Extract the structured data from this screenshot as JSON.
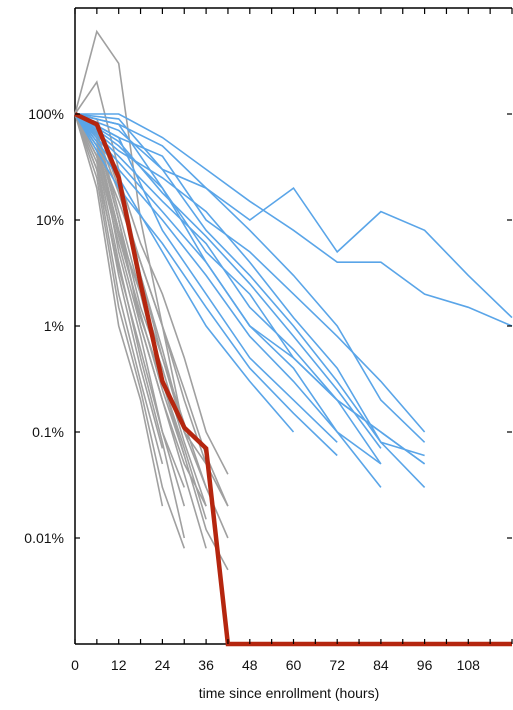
{
  "chart_data": {
    "type": "line",
    "title": "",
    "xlabel": "time since enrollment (hours)",
    "ylabel": "",
    "y_scale": "log",
    "xlim": [
      0,
      120
    ],
    "ylim_percent": [
      0.001,
      1000
    ],
    "x_ticks": [
      0,
      12,
      24,
      36,
      48,
      60,
      72,
      84,
      96,
      108
    ],
    "y_ticks": [
      {
        "value": 100,
        "label": "100%"
      },
      {
        "value": 10,
        "label": "10%"
      },
      {
        "value": 1,
        "label": "1%"
      },
      {
        "value": 0.1,
        "label": "0.1%"
      },
      {
        "value": 0.01,
        "label": "0.01%"
      }
    ],
    "grid": false,
    "colors": {
      "gray_series": "#a0a0a0",
      "blue_series": "#5aa5e8",
      "highlight_series": "#b5260f"
    },
    "highlight": {
      "points": [
        [
          0,
          100
        ],
        [
          6,
          80
        ],
        [
          12,
          25
        ],
        [
          18,
          2.5
        ],
        [
          24,
          0.3
        ],
        [
          30,
          0.11
        ],
        [
          36,
          0.07
        ],
        [
          42,
          0.001
        ],
        [
          120,
          0.001
        ]
      ]
    },
    "blue_series": [
      [
        [
          0,
          100
        ],
        [
          12,
          100
        ],
        [
          24,
          60
        ],
        [
          36,
          30
        ],
        [
          48,
          15
        ],
        [
          60,
          8
        ],
        [
          72,
          4
        ],
        [
          84,
          4
        ],
        [
          96,
          2
        ],
        [
          108,
          1.5
        ],
        [
          120,
          1
        ]
      ],
      [
        [
          0,
          100
        ],
        [
          12,
          80
        ],
        [
          24,
          50
        ],
        [
          36,
          20
        ],
        [
          48,
          10
        ],
        [
          60,
          20
        ],
        [
          72,
          5
        ],
        [
          84,
          12
        ],
        [
          96,
          8
        ],
        [
          108,
          3
        ],
        [
          120,
          1.2
        ]
      ],
      [
        [
          0,
          100
        ],
        [
          12,
          60
        ],
        [
          24,
          40
        ],
        [
          36,
          10
        ],
        [
          48,
          5
        ],
        [
          60,
          2
        ],
        [
          72,
          0.8
        ],
        [
          84,
          0.3
        ],
        [
          96,
          0.1
        ]
      ],
      [
        [
          0,
          100
        ],
        [
          12,
          50
        ],
        [
          24,
          20
        ],
        [
          36,
          5
        ],
        [
          48,
          2
        ],
        [
          60,
          0.5
        ],
        [
          72,
          0.2
        ],
        [
          84,
          0.1
        ],
        [
          96,
          0.05
        ]
      ],
      [
        [
          0,
          100
        ],
        [
          12,
          70
        ],
        [
          24,
          30
        ],
        [
          36,
          8
        ],
        [
          48,
          3
        ],
        [
          60,
          1
        ],
        [
          72,
          0.3
        ],
        [
          84,
          0.08
        ],
        [
          96,
          0.03
        ]
      ],
      [
        [
          0,
          100
        ],
        [
          12,
          40
        ],
        [
          24,
          15
        ],
        [
          36,
          6
        ],
        [
          48,
          1.5
        ],
        [
          60,
          0.6
        ],
        [
          72,
          0.2
        ],
        [
          84,
          0.05
        ]
      ],
      [
        [
          0,
          100
        ],
        [
          12,
          90
        ],
        [
          24,
          30
        ],
        [
          36,
          20
        ],
        [
          48,
          8
        ],
        [
          60,
          3
        ],
        [
          72,
          1
        ],
        [
          84,
          0.2
        ],
        [
          96,
          0.08
        ]
      ],
      [
        [
          0,
          100
        ],
        [
          12,
          30
        ],
        [
          24,
          10
        ],
        [
          36,
          3
        ],
        [
          48,
          0.8
        ],
        [
          60,
          0.3
        ],
        [
          72,
          0.1
        ],
        [
          84,
          0.05
        ]
      ],
      [
        [
          0,
          100
        ],
        [
          12,
          60
        ],
        [
          24,
          8
        ],
        [
          36,
          2
        ],
        [
          48,
          0.5
        ],
        [
          60,
          0.2
        ],
        [
          72,
          0.08
        ]
      ],
      [
        [
          0,
          100
        ],
        [
          12,
          45
        ],
        [
          24,
          25
        ],
        [
          36,
          12
        ],
        [
          48,
          4
        ],
        [
          60,
          1.2
        ],
        [
          72,
          0.4
        ],
        [
          84,
          0.08
        ],
        [
          96,
          0.06
        ]
      ],
      [
        [
          0,
          100
        ],
        [
          12,
          20
        ],
        [
          24,
          6
        ],
        [
          36,
          1.5
        ],
        [
          48,
          0.4
        ],
        [
          60,
          0.15
        ],
        [
          72,
          0.06
        ]
      ],
      [
        [
          0,
          100
        ],
        [
          12,
          80
        ],
        [
          24,
          20
        ],
        [
          36,
          4
        ],
        [
          48,
          1
        ],
        [
          60,
          0.4
        ],
        [
          72,
          0.1
        ],
        [
          84,
          0.03
        ]
      ],
      [
        [
          0,
          100
        ],
        [
          12,
          35
        ],
        [
          24,
          12
        ],
        [
          36,
          4
        ],
        [
          48,
          1
        ],
        [
          60,
          0.5
        ],
        [
          72,
          0.2
        ],
        [
          84,
          0.1
        ],
        [
          96,
          0.05
        ]
      ],
      [
        [
          0,
          100
        ],
        [
          12,
          55
        ],
        [
          24,
          18
        ],
        [
          36,
          7
        ],
        [
          48,
          2.5
        ],
        [
          60,
          0.8
        ],
        [
          72,
          0.25
        ],
        [
          84,
          0.07
        ]
      ],
      [
        [
          0,
          100
        ],
        [
          12,
          25
        ],
        [
          24,
          5
        ],
        [
          36,
          1
        ],
        [
          48,
          0.3
        ],
        [
          60,
          0.1
        ]
      ]
    ],
    "gray_series": [
      [
        [
          0,
          100
        ],
        [
          6,
          600
        ],
        [
          12,
          300
        ],
        [
          18,
          10
        ],
        [
          24,
          1
        ],
        [
          30,
          0.1
        ],
        [
          36,
          0.05
        ]
      ],
      [
        [
          0,
          100
        ],
        [
          6,
          200
        ],
        [
          12,
          30
        ],
        [
          18,
          3
        ],
        [
          24,
          0.5
        ],
        [
          30,
          0.1
        ]
      ],
      [
        [
          0,
          100
        ],
        [
          6,
          70
        ],
        [
          12,
          10
        ],
        [
          18,
          1
        ],
        [
          24,
          0.2
        ],
        [
          30,
          0.05
        ],
        [
          36,
          0.02
        ]
      ],
      [
        [
          0,
          100
        ],
        [
          6,
          60
        ],
        [
          12,
          5
        ],
        [
          18,
          0.8
        ],
        [
          24,
          0.1
        ],
        [
          30,
          0.02
        ]
      ],
      [
        [
          0,
          100
        ],
        [
          6,
          50
        ],
        [
          12,
          8
        ],
        [
          18,
          2
        ],
        [
          24,
          0.3
        ],
        [
          30,
          0.06
        ]
      ],
      [
        [
          0,
          100
        ],
        [
          6,
          40
        ],
        [
          12,
          4
        ],
        [
          18,
          0.5
        ],
        [
          24,
          0.08
        ],
        [
          30,
          0.01
        ]
      ],
      [
        [
          0,
          100
        ],
        [
          6,
          80
        ],
        [
          12,
          20
        ],
        [
          18,
          3
        ],
        [
          24,
          0.6
        ],
        [
          30,
          0.1
        ],
        [
          36,
          0.03
        ]
      ],
      [
        [
          0,
          100
        ],
        [
          6,
          30
        ],
        [
          12,
          2
        ],
        [
          18,
          0.3
        ],
        [
          24,
          0.05
        ]
      ],
      [
        [
          0,
          100
        ],
        [
          6,
          50
        ],
        [
          12,
          15
        ],
        [
          18,
          4
        ],
        [
          24,
          1
        ],
        [
          30,
          0.2
        ],
        [
          36,
          0.05
        ],
        [
          42,
          0.02
        ]
      ],
      [
        [
          0,
          100
        ],
        [
          6,
          20
        ],
        [
          12,
          1
        ],
        [
          18,
          0.2
        ],
        [
          24,
          0.02
        ]
      ],
      [
        [
          0,
          100
        ],
        [
          6,
          60
        ],
        [
          12,
          10
        ],
        [
          18,
          1.5
        ],
        [
          24,
          0.4
        ],
        [
          30,
          0.08
        ],
        [
          36,
          0.02
        ]
      ],
      [
        [
          0,
          100
        ],
        [
          6,
          40
        ],
        [
          12,
          6
        ],
        [
          18,
          1
        ],
        [
          24,
          0.2
        ],
        [
          30,
          0.04
        ],
        [
          36,
          0.008
        ]
      ],
      [
        [
          0,
          100
        ],
        [
          6,
          90
        ],
        [
          12,
          25
        ],
        [
          18,
          6
        ],
        [
          24,
          2
        ],
        [
          30,
          0.5
        ],
        [
          36,
          0.1
        ],
        [
          42,
          0.04
        ]
      ],
      [
        [
          0,
          100
        ],
        [
          6,
          35
        ],
        [
          12,
          3
        ],
        [
          18,
          0.4
        ],
        [
          24,
          0.07
        ]
      ],
      [
        [
          0,
          100
        ],
        [
          6,
          70
        ],
        [
          12,
          12
        ],
        [
          18,
          2
        ],
        [
          24,
          0.5
        ],
        [
          30,
          0.12
        ],
        [
          36,
          0.03
        ],
        [
          42,
          0.01
        ]
      ],
      [
        [
          0,
          100
        ],
        [
          6,
          25
        ],
        [
          12,
          1.5
        ],
        [
          18,
          0.25
        ],
        [
          24,
          0.03
        ],
        [
          30,
          0.008
        ]
      ],
      [
        [
          0,
          100
        ],
        [
          6,
          55
        ],
        [
          12,
          8
        ],
        [
          18,
          1.2
        ],
        [
          24,
          0.3
        ],
        [
          30,
          0.07
        ],
        [
          36,
          0.015
        ]
      ],
      [
        [
          0,
          100
        ],
        [
          6,
          45
        ],
        [
          12,
          7
        ],
        [
          18,
          1.3
        ],
        [
          24,
          0.25
        ],
        [
          30,
          0.06
        ],
        [
          36,
          0.012
        ],
        [
          42,
          0.005
        ]
      ],
      [
        [
          0,
          100
        ],
        [
          6,
          65
        ],
        [
          12,
          18
        ],
        [
          18,
          4
        ],
        [
          24,
          1
        ],
        [
          30,
          0.25
        ],
        [
          36,
          0.06
        ],
        [
          42,
          0.02
        ]
      ],
      [
        [
          0,
          100
        ],
        [
          6,
          30
        ],
        [
          12,
          3.5
        ],
        [
          18,
          0.6
        ],
        [
          24,
          0.1
        ],
        [
          30,
          0.03
        ]
      ]
    ]
  }
}
